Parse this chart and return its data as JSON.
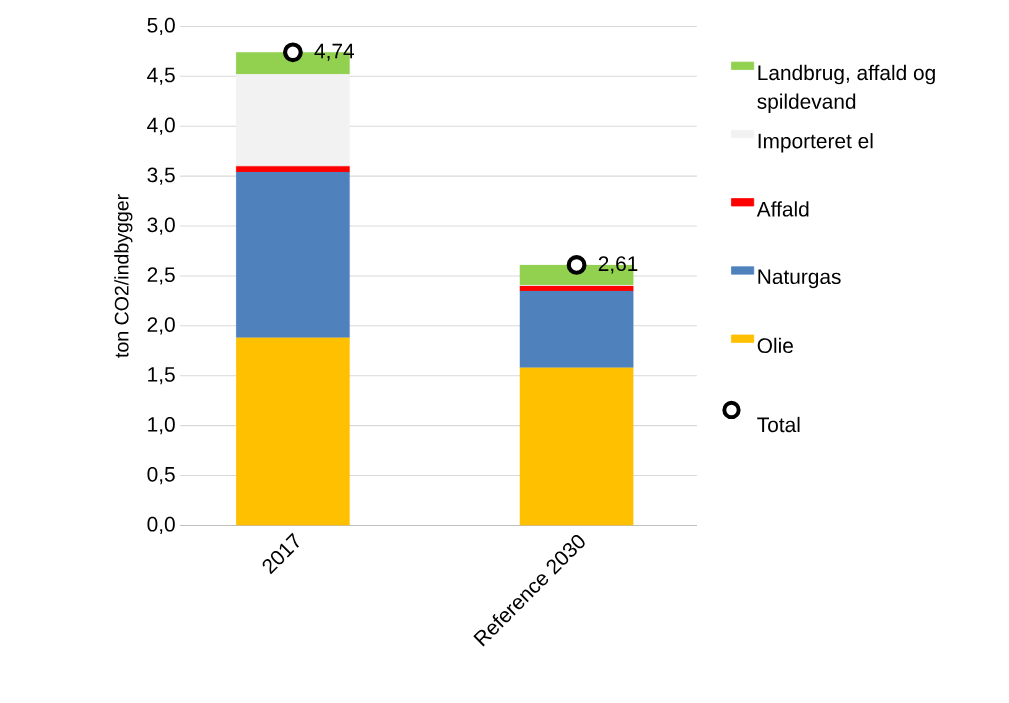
{
  "chart_data": {
    "type": "bar",
    "stacked": true,
    "ylabel": "ton CO2/indbygger",
    "categories": [
      "2017",
      "Reference 2030"
    ],
    "series": [
      {
        "name": "Olie",
        "color": "#ffc000",
        "values": [
          1.88,
          1.58
        ]
      },
      {
        "name": "Naturgas",
        "color": "#4f81bd",
        "values": [
          1.66,
          0.77
        ]
      },
      {
        "name": "Affald",
        "color": "#ff0000",
        "values": [
          0.06,
          0.05
        ]
      },
      {
        "name": "Importeret el",
        "color": "#f2f2f2",
        "values": [
          0.92,
          0.01
        ]
      },
      {
        "name": "Landbrug, affald og spildevand",
        "color": "#92d050",
        "values": [
          0.22,
          0.2
        ]
      },
      {
        "name": "Total",
        "type": "scatter",
        "color": "#000000",
        "values": [
          4.74,
          2.61
        ],
        "value_labels": [
          "4,74",
          "2,61"
        ]
      }
    ],
    "ylim": [
      0,
      5
    ],
    "yticks": [
      {
        "value": 0,
        "label": "0,0"
      },
      {
        "value": 0.5,
        "label": "0,5"
      },
      {
        "value": 1,
        "label": "1,0"
      },
      {
        "value": 1.5,
        "label": "1,5"
      },
      {
        "value": 2,
        "label": "2,0"
      },
      {
        "value": 2.5,
        "label": "2,5"
      },
      {
        "value": 3,
        "label": "3,0"
      },
      {
        "value": 3.5,
        "label": "3,5"
      },
      {
        "value": 4,
        "label": "4,0"
      },
      {
        "value": 4.5,
        "label": "4,5"
      },
      {
        "value": 5,
        "label": "5,0"
      }
    ],
    "grid": "y",
    "legend": "right"
  }
}
